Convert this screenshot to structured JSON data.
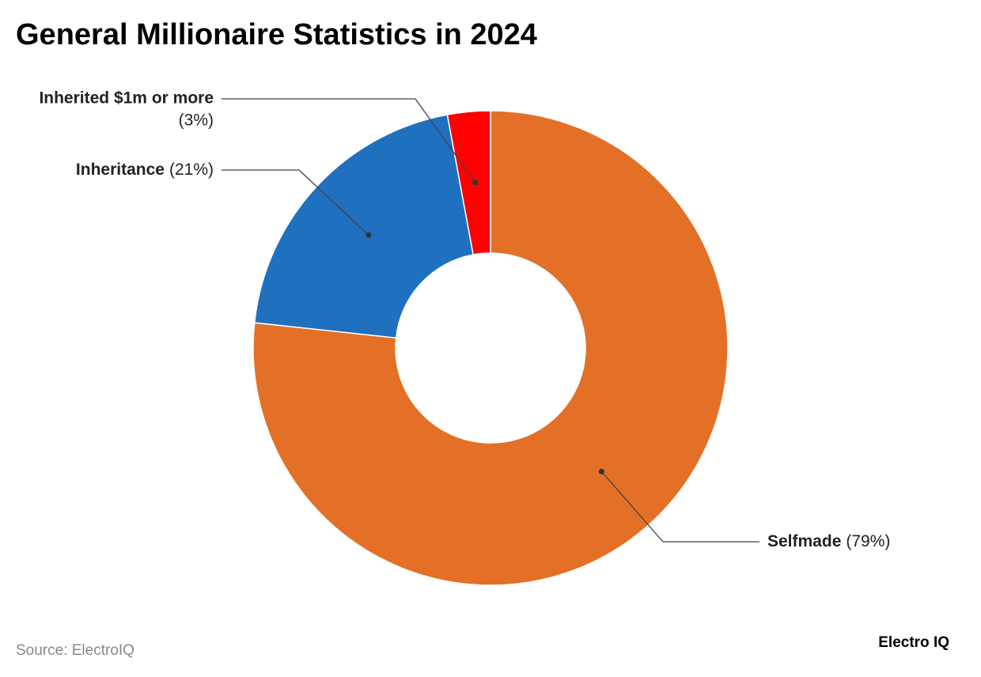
{
  "chart_data": {
    "type": "donut",
    "title": "General Millionaire Statistics in 2024",
    "categories": [
      "Selfmade",
      "Inheritance",
      "Inherited $1m or more"
    ],
    "values": [
      79,
      21,
      3
    ],
    "value_labels": [
      "(79%)",
      "(21%)",
      "(3%)"
    ],
    "colors": [
      "#e37026",
      "#1f70bf",
      "#ff0000"
    ],
    "source": "Source: ElectroIQ",
    "brand": "Electro IQ"
  }
}
